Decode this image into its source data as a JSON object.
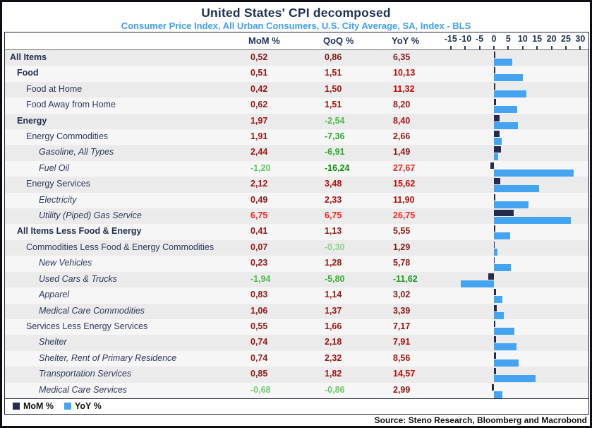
{
  "title": "United States' CPI decomposed",
  "subtitle": "Consumer Price Index, All Urban Consumers, U.S. City Average, SA, Index - BLS",
  "source": "Source: Steno Research, Bloomberg and Macrobond",
  "columns": {
    "mom": "MoM %",
    "qoq": "QoQ %",
    "yoy": "YoY %"
  },
  "legend": {
    "mom": {
      "label": "MoM %",
      "color": "#232b4e"
    },
    "yoy": {
      "label": "YoY %",
      "color": "#45a4f1"
    }
  },
  "colors": {
    "mom_bar": "#232b4e",
    "yoy_bar": "#45a4f1",
    "title_navy": "#1f3150",
    "subtitle_blue": "#3f9ff0",
    "label_navy": "#2c3a5c"
  },
  "axis": {
    "tick_labels": [
      "-15",
      "-10",
      "-5",
      "0",
      "5",
      "10",
      "15",
      "20",
      "25",
      "30"
    ],
    "tick_values": [
      -15,
      -10,
      -5,
      0,
      5,
      10,
      15,
      20,
      25,
      30
    ]
  },
  "rows": [
    {
      "label": "All Items",
      "indent": 0,
      "bold": true,
      "italic": false,
      "heavy": true,
      "mom": {
        "t": "0,52",
        "c": "#7f1d1d"
      },
      "qoq": {
        "t": "0,86",
        "c": "#7f1d1d"
      },
      "yoy": {
        "t": "6,35",
        "c": "#7f1d1d"
      }
    },
    {
      "label": "Food",
      "indent": 1,
      "bold": true,
      "italic": false,
      "heavy": false,
      "mom": {
        "t": "0,51",
        "c": "#8e1a1a"
      },
      "qoq": {
        "t": "1,51",
        "c": "#971818"
      },
      "yoy": {
        "t": "10,13",
        "c": "#b61010"
      }
    },
    {
      "label": "Food at Home",
      "indent": 2,
      "bold": false,
      "italic": false,
      "heavy": false,
      "mom": {
        "t": "0,42",
        "c": "#8e1a1a"
      },
      "qoq": {
        "t": "1,50",
        "c": "#971818"
      },
      "yoy": {
        "t": "11,32",
        "c": "#bb0f0f"
      }
    },
    {
      "label": "Food Away from Home",
      "indent": 2,
      "bold": false,
      "italic": false,
      "heavy": false,
      "mom": {
        "t": "0,62",
        "c": "#901a1a"
      },
      "qoq": {
        "t": "1,51",
        "c": "#971818"
      },
      "yoy": {
        "t": "8,20",
        "c": "#a61414"
      }
    },
    {
      "label": "Energy",
      "indent": 1,
      "bold": true,
      "italic": false,
      "heavy": false,
      "mom": {
        "t": "1,97",
        "c": "#a01616"
      },
      "qoq": {
        "t": "-2,54",
        "c": "#4bba4b"
      },
      "yoy": {
        "t": "8,40",
        "c": "#a71414"
      }
    },
    {
      "label": "Energy Commodities",
      "indent": 2,
      "bold": false,
      "italic": false,
      "heavy": false,
      "mom": {
        "t": "1,91",
        "c": "#9f1616"
      },
      "qoq": {
        "t": "-7,36",
        "c": "#2ca82c"
      },
      "yoy": {
        "t": "2,66",
        "c": "#8b1b1b"
      }
    },
    {
      "label": "Gasoline, All Types",
      "indent": 3,
      "bold": false,
      "italic": true,
      "heavy": false,
      "mom": {
        "t": "2,44",
        "c": "#a81414"
      },
      "qoq": {
        "t": "-6,91",
        "c": "#2faa2f"
      },
      "yoy": {
        "t": "1,49",
        "c": "#881c1c"
      }
    },
    {
      "label": "Fuel Oil",
      "indent": 3,
      "bold": false,
      "italic": true,
      "heavy": false,
      "mom": {
        "t": "-1,20",
        "c": "#64c464"
      },
      "qoq": {
        "t": "-16,24",
        "c": "#0e8c0e"
      },
      "yoy": {
        "t": "27,67",
        "c": "#fb2020"
      }
    },
    {
      "label": "Energy Services",
      "indent": 2,
      "bold": false,
      "italic": false,
      "heavy": false,
      "mom": {
        "t": "2,12",
        "c": "#a31515"
      },
      "qoq": {
        "t": "3,48",
        "c": "#b11212"
      },
      "yoy": {
        "t": "15,62",
        "c": "#cc0a0a"
      }
    },
    {
      "label": "Electricity",
      "indent": 3,
      "bold": false,
      "italic": true,
      "heavy": false,
      "mom": {
        "t": "0,49",
        "c": "#8e1a1a"
      },
      "qoq": {
        "t": "2,33",
        "c": "#a51515"
      },
      "yoy": {
        "t": "11,90",
        "c": "#bd0e0e"
      }
    },
    {
      "label": "Utility (Piped) Gas Service",
      "indent": 3,
      "bold": false,
      "italic": true,
      "heavy": false,
      "mom": {
        "t": "6,75",
        "c": "#fb2020"
      },
      "qoq": {
        "t": "6,75",
        "c": "#fb2020"
      },
      "yoy": {
        "t": "26,75",
        "c": "#f92424"
      }
    },
    {
      "label": "All Items Less Food & Energy",
      "indent": 1,
      "bold": true,
      "italic": false,
      "heavy": false,
      "mom": {
        "t": "0,41",
        "c": "#8e1a1a"
      },
      "qoq": {
        "t": "1,13",
        "c": "#941919"
      },
      "yoy": {
        "t": "5,55",
        "c": "#961818"
      }
    },
    {
      "label": "Commodities Less Food & Energy Commodities",
      "indent": 2,
      "bold": false,
      "italic": false,
      "heavy": false,
      "mom": {
        "t": "0,07",
        "c": "#8c1b1b"
      },
      "qoq": {
        "t": "-0,30",
        "c": "#8ad48a"
      },
      "yoy": {
        "t": "1,29",
        "c": "#871c1c"
      }
    },
    {
      "label": "New Vehicles",
      "indent": 3,
      "bold": false,
      "italic": true,
      "heavy": false,
      "mom": {
        "t": "0,23",
        "c": "#8d1b1b"
      },
      "qoq": {
        "t": "1,28",
        "c": "#951919"
      },
      "yoy": {
        "t": "5,78",
        "c": "#971818"
      }
    },
    {
      "label": "Used Cars & Trucks",
      "indent": 3,
      "bold": false,
      "italic": true,
      "heavy": false,
      "mom": {
        "t": "-1,94",
        "c": "#4fbc4f"
      },
      "qoq": {
        "t": "-5,80",
        "c": "#35ad35"
      },
      "yoy": {
        "t": "-11,62",
        "c": "#1d9b1d"
      }
    },
    {
      "label": "Apparel",
      "indent": 3,
      "bold": false,
      "italic": true,
      "heavy": false,
      "mom": {
        "t": "0,83",
        "c": "#911a1a"
      },
      "qoq": {
        "t": "1,14",
        "c": "#941919"
      },
      "yoy": {
        "t": "3,02",
        "c": "#8d1b1b"
      }
    },
    {
      "label": "Medical Care Commodities",
      "indent": 3,
      "bold": false,
      "italic": true,
      "heavy": false,
      "mom": {
        "t": "1,06",
        "c": "#941919"
      },
      "qoq": {
        "t": "1,37",
        "c": "#961818"
      },
      "yoy": {
        "t": "3,39",
        "c": "#8e1a1a"
      }
    },
    {
      "label": "Services Less Energy Services",
      "indent": 2,
      "bold": false,
      "italic": false,
      "heavy": false,
      "mom": {
        "t": "0,55",
        "c": "#8f1a1a"
      },
      "qoq": {
        "t": "1,66",
        "c": "#9a1717"
      },
      "yoy": {
        "t": "7,17",
        "c": "#a21515"
      }
    },
    {
      "label": "Shelter",
      "indent": 3,
      "bold": false,
      "italic": true,
      "heavy": false,
      "mom": {
        "t": "0,74",
        "c": "#901a1a"
      },
      "qoq": {
        "t": "2,18",
        "c": "#a31515"
      },
      "yoy": {
        "t": "7,91",
        "c": "#a51414"
      }
    },
    {
      "label": "Shelter, Rent of Primary Residence",
      "indent": 3,
      "bold": false,
      "italic": true,
      "heavy": false,
      "mom": {
        "t": "0,74",
        "c": "#901a1a"
      },
      "qoq": {
        "t": "2,32",
        "c": "#a51515"
      },
      "yoy": {
        "t": "8,56",
        "c": "#a81313"
      }
    },
    {
      "label": "Transportation Services",
      "indent": 3,
      "bold": false,
      "italic": true,
      "heavy": false,
      "mom": {
        "t": "0,85",
        "c": "#911a1a"
      },
      "qoq": {
        "t": "1,82",
        "c": "#9c1717"
      },
      "yoy": {
        "t": "14,57",
        "c": "#c90b0b"
      }
    },
    {
      "label": "Medical Care Services",
      "indent": 3,
      "bold": false,
      "italic": true,
      "heavy": false,
      "mom": {
        "t": "-0,68",
        "c": "#74cc74"
      },
      "qoq": {
        "t": "-0,86",
        "c": "#6cc96c"
      },
      "yoy": {
        "t": "2,99",
        "c": "#8d1b1b"
      }
    }
  ],
  "chart_data": {
    "type": "bar",
    "orientation": "horizontal",
    "title": "United States' CPI decomposed",
    "subtitle": "Consumer Price Index, All Urban Consumers, U.S. City Average, SA, Index - BLS",
    "xlabel": "",
    "ylabel": "",
    "xlim": [
      -15,
      30
    ],
    "grid": true,
    "legend_position": "bottom",
    "legend": [
      "MoM %",
      "YoY %"
    ],
    "categories": [
      "All Items",
      "Food",
      "Food at Home",
      "Food Away from Home",
      "Energy",
      "Energy Commodities",
      "Gasoline, All Types",
      "Fuel Oil",
      "Energy Services",
      "Electricity",
      "Utility (Piped) Gas Service",
      "All Items Less Food & Energy",
      "Commodities Less Food & Energy Commodities",
      "New Vehicles",
      "Used Cars & Trucks",
      "Apparel",
      "Medical Care Commodities",
      "Services Less Energy Services",
      "Shelter",
      "Shelter, Rent of Primary Residence",
      "Transportation Services",
      "Medical Care Services"
    ],
    "series": [
      {
        "name": "MoM %",
        "plotted": true,
        "values": [
          0.52,
          0.51,
          0.42,
          0.62,
          1.97,
          1.91,
          2.44,
          -1.2,
          2.12,
          0.49,
          6.75,
          0.41,
          0.07,
          0.23,
          -1.94,
          0.83,
          1.06,
          0.55,
          0.74,
          0.74,
          0.85,
          -0.68
        ]
      },
      {
        "name": "QoQ %",
        "plotted": false,
        "values": [
          0.86,
          1.51,
          1.5,
          1.51,
          -2.54,
          -7.36,
          -6.91,
          -16.24,
          3.48,
          2.33,
          6.75,
          1.13,
          -0.3,
          1.28,
          -5.8,
          1.14,
          1.37,
          1.66,
          2.18,
          2.32,
          1.82,
          -0.86
        ]
      },
      {
        "name": "YoY %",
        "plotted": true,
        "values": [
          6.35,
          10.13,
          11.32,
          8.2,
          8.4,
          2.66,
          1.49,
          27.67,
          15.62,
          11.9,
          26.75,
          5.55,
          1.29,
          5.78,
          -11.62,
          3.02,
          3.39,
          7.17,
          7.91,
          8.56,
          14.57,
          2.99
        ]
      }
    ]
  }
}
